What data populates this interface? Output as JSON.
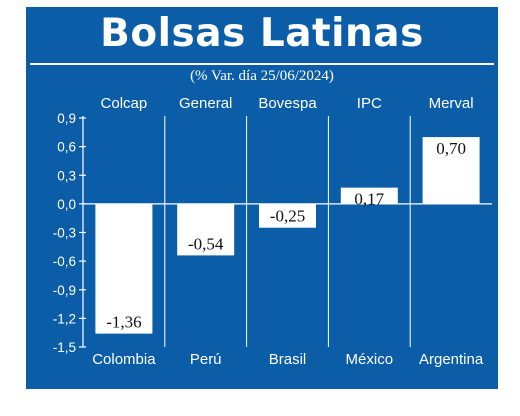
{
  "title": "Bolsas Latinas",
  "subtitle": "(% Var. día 25/06/2024)",
  "colors": {
    "background": "#0b5da7",
    "bar": "#ffffff",
    "grid": "#ffffff",
    "text": "#ffffff",
    "label_text": "#111111"
  },
  "chart_data": {
    "type": "bar",
    "title": "Bolsas Latinas",
    "subtitle": "(% Var. día 25/06/2024)",
    "categories": [
      "Colombia",
      "Perú",
      "Brasil",
      "México",
      "Argentina"
    ],
    "index_names": [
      "Colcap",
      "General",
      "Bovespa",
      "IPC",
      "Merval"
    ],
    "values": [
      -1.36,
      -0.54,
      -0.25,
      0.17,
      0.7
    ],
    "value_labels": [
      "-1,36",
      "-0,54",
      "-0,25",
      "0,17",
      "0,70"
    ],
    "ylim": [
      -1.5,
      0.9
    ],
    "yticks": [
      0.9,
      0.6,
      0.3,
      0.0,
      -0.3,
      -0.6,
      -0.9,
      -1.2,
      -1.5
    ],
    "ytick_labels": [
      "0,9",
      "0,6",
      "0,3",
      "0,0",
      "-0,3",
      "-0,6",
      "-0,9",
      "-1,2",
      "-1,5"
    ],
    "grid": "vertical separators",
    "legend": "none"
  }
}
